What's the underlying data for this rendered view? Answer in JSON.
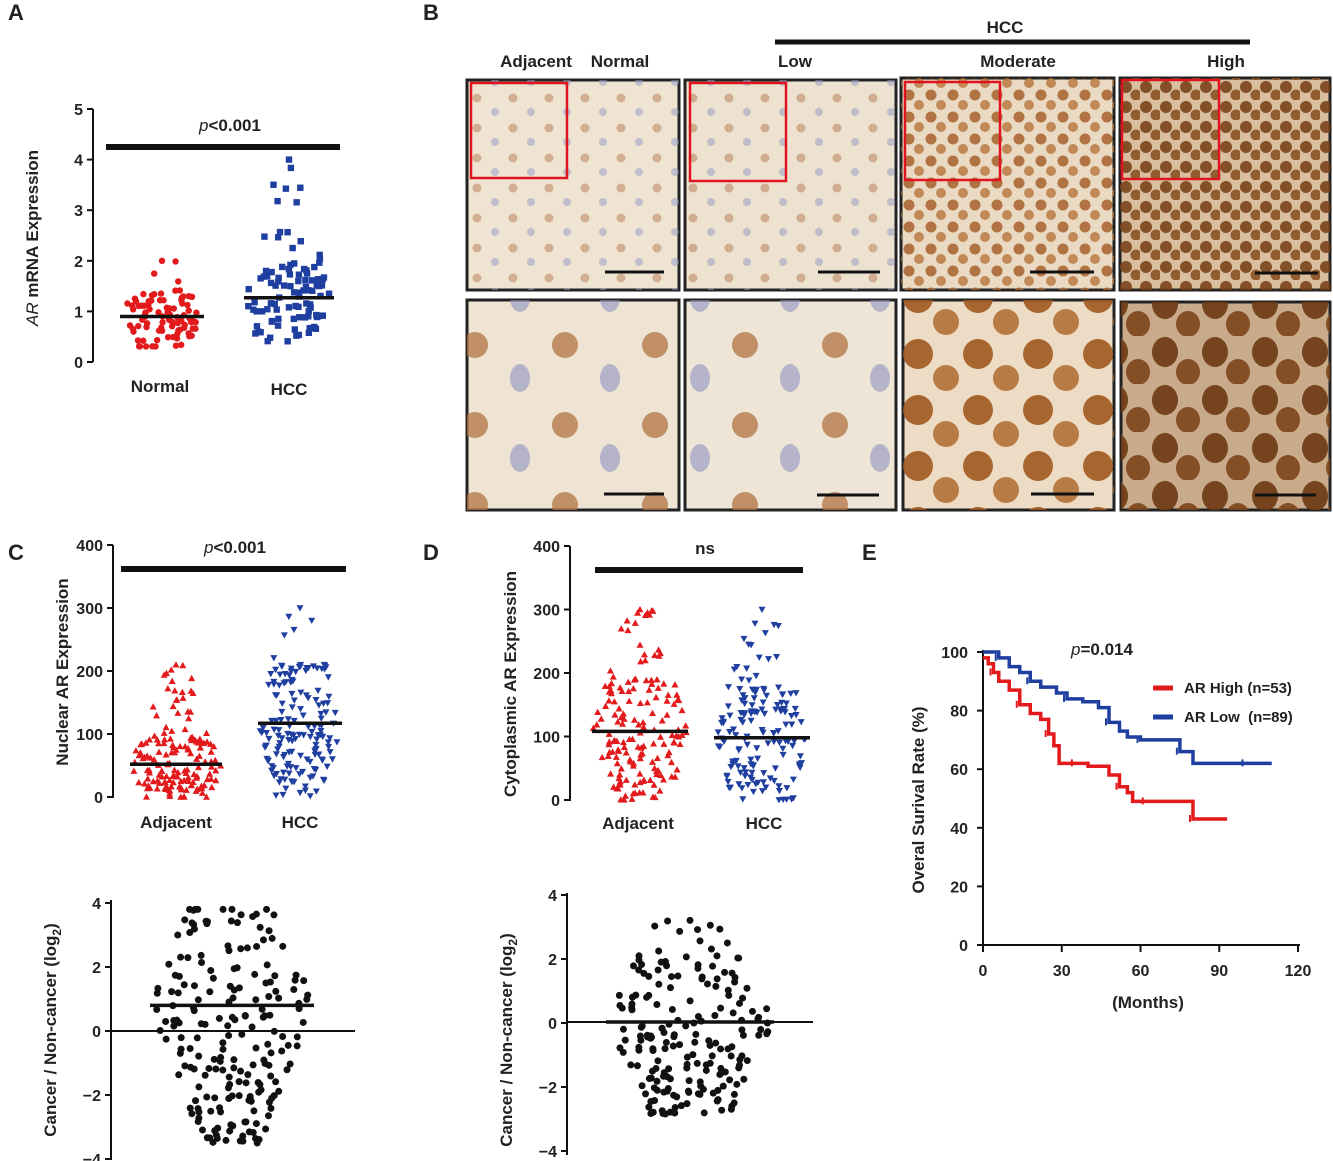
{
  "panels": {
    "A": {
      "letter": "A",
      "ylabel_italic": "AR",
      "ylabel_rest": " mRNA Expression",
      "p_prefix": "p",
      "p_rest": "<0.001",
      "ylim": [
        0,
        5
      ],
      "yticks": [
        "0",
        "1",
        "2",
        "3",
        "4",
        "5"
      ],
      "groups": [
        {
          "label": "Normal",
          "color": "#e31a1c",
          "marker": "circle",
          "mean": 0.9,
          "min": 0.3,
          "max": 2.0,
          "n": 90
        },
        {
          "label": "HCC",
          "color": "#1f3fa0",
          "marker": "square",
          "mean": 1.27,
          "min": 0.4,
          "max": 4.0,
          "n": 100
        }
      ]
    },
    "B": {
      "letter": "B",
      "col_labels": [
        "Adjacent",
        "Normal",
        "Low",
        "Moderate",
        "High"
      ],
      "group_label": "HCC"
    },
    "C": {
      "letter": "C",
      "ylabel": "Nuclear AR Expression",
      "p_prefix": "p",
      "p_rest": "<0.001",
      "ylim": [
        0,
        400
      ],
      "yticks": [
        "0",
        "100",
        "200",
        "300",
        "400"
      ],
      "groups": [
        {
          "label": "Adjacent",
          "color": "#e31a1c",
          "marker": "triangle-up",
          "mean": 52,
          "min": 0,
          "max": 210,
          "n": 160
        },
        {
          "label": "HCC",
          "color": "#1f3fa0",
          "marker": "triangle-down",
          "mean": 117,
          "min": 0,
          "max": 300,
          "n": 160
        }
      ]
    },
    "D": {
      "letter": "D",
      "ylabel": "Cytoplasmic AR Expression",
      "p_text": "ns",
      "ylim": [
        0,
        400
      ],
      "yticks": [
        "0",
        "100",
        "200",
        "300",
        "400"
      ],
      "groups": [
        {
          "label": "Adjacent",
          "color": "#e31a1c",
          "marker": "triangle-up",
          "mean": 108,
          "min": 0,
          "max": 300,
          "n": 160
        },
        {
          "label": "HCC",
          "color": "#1f3fa0",
          "marker": "triangle-down",
          "mean": 98,
          "min": 0,
          "max": 300,
          "n": 150
        }
      ]
    },
    "C2": {
      "ylabel_main": "Cancer / Non-cancer (log",
      "ylabel_sub": "2",
      "ylabel_end": ")",
      "ylim": [
        -4,
        4
      ],
      "yticks": [
        "−4",
        "−2",
        "0",
        "2",
        "4"
      ],
      "mean": 0.8,
      "min": -3.5,
      "max": 3.8,
      "n": 200
    },
    "D2": {
      "ylabel_main": "Cancer / Non-cancer (log",
      "ylabel_sub": "2",
      "ylabel_end": ")",
      "ylim": [
        -4,
        4
      ],
      "yticks": [
        "−4",
        "−2",
        "0",
        "2",
        "4"
      ],
      "mean": 0.0,
      "min": -2.9,
      "max": 3.2,
      "n": 190
    },
    "E": {
      "letter": "E",
      "ylabel": "Overal Surival Rate (%)",
      "xlabel": "(Months)",
      "p_prefix": "p",
      "p_rest": "=0.014",
      "xticks": [
        "0",
        "30",
        "60",
        "90",
        "120"
      ],
      "yticks": [
        "0",
        "20",
        "40",
        "60",
        "80",
        "100"
      ]
    }
  },
  "chart_data": [
    {
      "type": "scatter",
      "panel": "A",
      "categories": [
        "Normal",
        "HCC"
      ],
      "ylabel": "AR mRNA Expression",
      "ylim": [
        0,
        5
      ],
      "series": [
        {
          "name": "Normal",
          "mean": 0.9,
          "range": [
            0.3,
            2.0
          ]
        },
        {
          "name": "HCC",
          "mean": 1.27,
          "range": [
            0.4,
            4.0
          ]
        }
      ],
      "annotation": "p<0.001"
    },
    {
      "type": "scatter",
      "panel": "C",
      "categories": [
        "Adjacent",
        "HCC"
      ],
      "ylabel": "Nuclear AR Expression",
      "ylim": [
        0,
        400
      ],
      "series": [
        {
          "name": "Adjacent",
          "mean": 52,
          "range": [
            0,
            210
          ]
        },
        {
          "name": "HCC",
          "mean": 117,
          "range": [
            0,
            300
          ]
        }
      ],
      "annotation": "p<0.001"
    },
    {
      "type": "scatter",
      "panel": "D",
      "categories": [
        "Adjacent",
        "HCC"
      ],
      "ylabel": "Cytoplasmic AR Expression",
      "ylim": [
        0,
        400
      ],
      "series": [
        {
          "name": "Adjacent",
          "mean": 108,
          "range": [
            0,
            300
          ]
        },
        {
          "name": "HCC",
          "mean": 98,
          "range": [
            0,
            300
          ]
        }
      ],
      "annotation": "ns"
    },
    {
      "type": "scatter",
      "panel": "C-lower",
      "ylabel": "Cancer / Non-cancer (log2)",
      "ylim": [
        -4,
        4
      ],
      "mean": 0.8,
      "range": [
        -3.5,
        3.8
      ]
    },
    {
      "type": "scatter",
      "panel": "D-lower",
      "ylabel": "Cancer / Non-cancer (log2)",
      "ylim": [
        -4,
        4
      ],
      "mean": 0.0,
      "range": [
        -2.9,
        3.2
      ]
    },
    {
      "type": "line",
      "panel": "E",
      "xlabel": "(Months)",
      "ylabel": "Overal Surival Rate (%)",
      "xlim": [
        0,
        120
      ],
      "ylim": [
        0,
        100
      ],
      "annotation": "p=0.014",
      "series": [
        {
          "name": "AR High (n=53)",
          "color": "#e31a1c",
          "x": [
            0,
            2,
            4,
            6,
            10,
            14,
            18,
            22,
            25,
            27,
            29,
            35,
            40,
            48,
            52,
            55,
            57,
            62,
            70,
            75,
            80,
            93
          ],
          "y": [
            98,
            96,
            93,
            90,
            87,
            82,
            79,
            77,
            72,
            68,
            62,
            62,
            61,
            58,
            54,
            52,
            49,
            49,
            49,
            49,
            43,
            43
          ]
        },
        {
          "name": "AR Low  (n=89)",
          "color": "#1f3fa0",
          "x": [
            0,
            2,
            6,
            10,
            14,
            18,
            22,
            28,
            32,
            38,
            44,
            48,
            52,
            55,
            60,
            66,
            70,
            75,
            80,
            90,
            100,
            110
          ],
          "y": [
            100,
            100,
            98,
            95,
            93,
            90,
            88,
            86,
            84,
            83,
            81,
            76,
            73,
            71,
            70,
            70,
            70,
            66,
            62,
            62,
            62,
            62
          ]
        }
      ]
    }
  ],
  "legend": {
    "red": "AR High (n=53)",
    "blue": "AR Low  (n=89)"
  }
}
